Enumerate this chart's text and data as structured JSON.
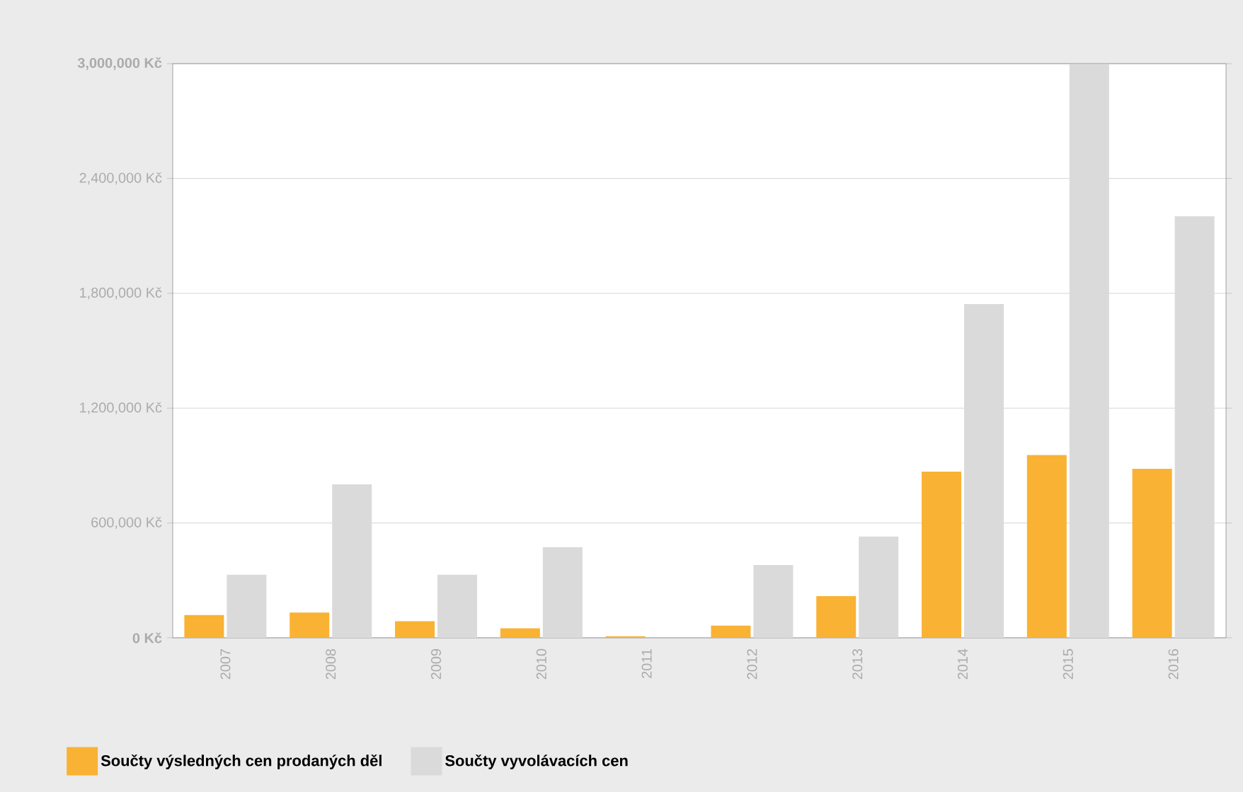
{
  "chart_data": {
    "type": "bar",
    "categories": [
      "2007",
      "2008",
      "2009",
      "2010",
      "2011",
      "2012",
      "2013",
      "2014",
      "2015",
      "2016"
    ],
    "series": [
      {
        "name": "Součty výsledných cen prodaných děl",
        "color": "#f9b233",
        "values": [
          119000,
          132000,
          87000,
          50000,
          8000,
          64000,
          218000,
          868000,
          955000,
          883000
        ]
      },
      {
        "name": "Součty vyvolávacích cen",
        "color": "#dadada",
        "values": [
          330000,
          802000,
          330000,
          474000,
          null,
          380000,
          529000,
          1744000,
          2997000,
          2203000
        ]
      }
    ],
    "ylim": [
      0,
      3000000
    ],
    "yticks": [
      {
        "value": 0,
        "label": "0 Kč"
      },
      {
        "value": 600000,
        "label": "600,000 Kč"
      },
      {
        "value": 1200000,
        "label": "1,200,000 Kč"
      },
      {
        "value": 1800000,
        "label": "1,800,000 Kč"
      },
      {
        "value": 2400000,
        "label": "2,400,000 Kč"
      },
      {
        "value": 3000000,
        "label": "3,000,000 Kč"
      }
    ],
    "grid": "y",
    "legend": "bottom left"
  }
}
